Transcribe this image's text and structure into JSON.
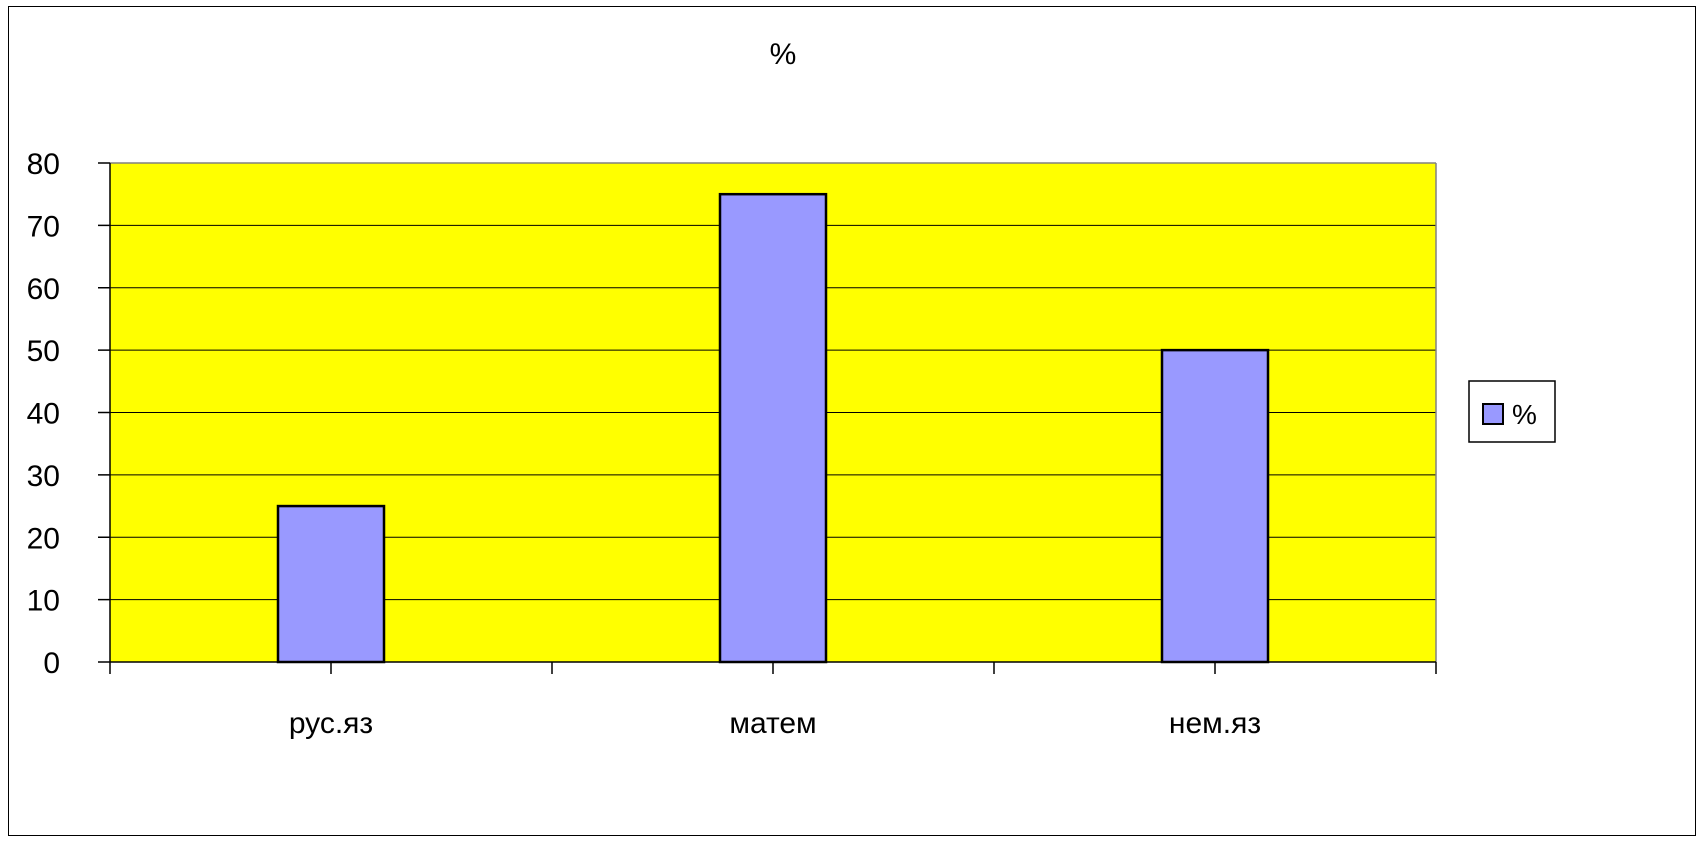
{
  "chart_data": {
    "type": "bar",
    "title": "%",
    "categories": [
      "рус.яз",
      "матем",
      "нем.яз"
    ],
    "series": [
      {
        "name": "%",
        "values": [
          25,
          75,
          50
        ],
        "color": "#9999ff"
      }
    ],
    "ylim": [
      0,
      80
    ],
    "yticks": [
      0,
      10,
      20,
      30,
      40,
      50,
      60,
      70,
      80
    ],
    "grid": true,
    "plot_background": "#ffff00",
    "legend": {
      "position": "right",
      "entries": [
        "%"
      ]
    }
  }
}
